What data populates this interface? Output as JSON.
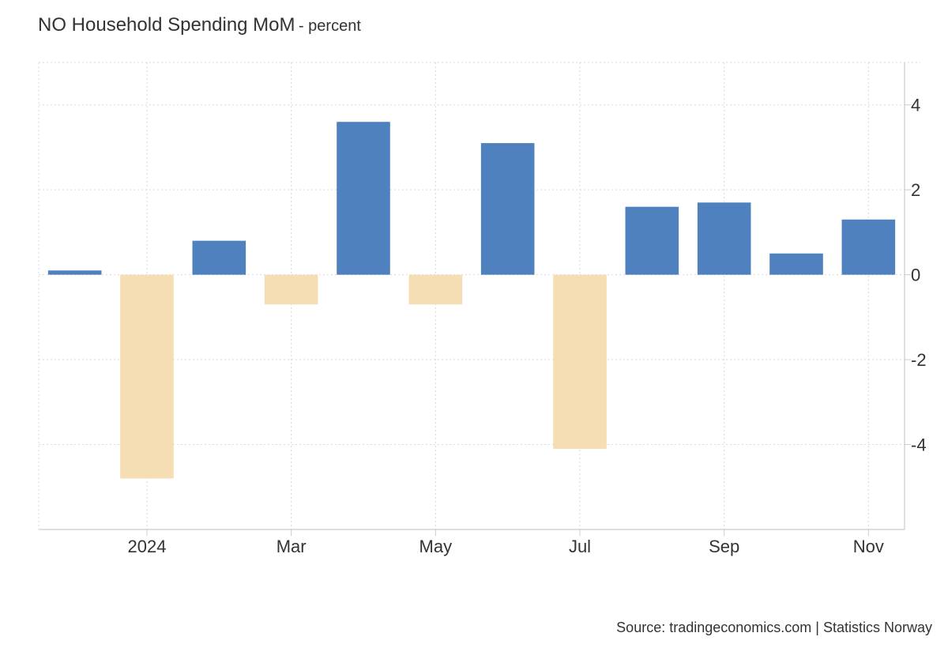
{
  "chart_data": {
    "type": "bar",
    "title": "NO Household Spending MoM",
    "subtitle": "- percent",
    "categories": [
      "2023-12",
      "2024-01",
      "2024-02",
      "2024-03",
      "2024-04",
      "2024-05",
      "2024-06",
      "2024-07",
      "2024-08",
      "2024-09",
      "2024-10",
      "2024-11"
    ],
    "values": [
      0.1,
      -4.8,
      0.8,
      -0.7,
      3.6,
      -0.7,
      3.1,
      -4.1,
      1.6,
      1.7,
      0.5,
      1.3
    ],
    "x_tick_labels": [
      {
        "category": "2024-01",
        "label": "2024"
      },
      {
        "category": "2024-03",
        "label": "Mar"
      },
      {
        "category": "2024-05",
        "label": "May"
      },
      {
        "category": "2024-07",
        "label": "Jul"
      },
      {
        "category": "2024-09",
        "label": "Sep"
      },
      {
        "category": "2024-11",
        "label": "Nov"
      }
    ],
    "y_ticks": [
      4,
      2,
      0,
      -2,
      -4
    ],
    "ylim": [
      -6,
      5
    ],
    "y_axis_position": "right",
    "grid": true,
    "positive_color": "#4e81bd",
    "negative_color": "#f5deb3",
    "xlabel": "",
    "ylabel": ""
  },
  "footer": {
    "source": "Source: tradingeconomics.com | Statistics Norway"
  }
}
